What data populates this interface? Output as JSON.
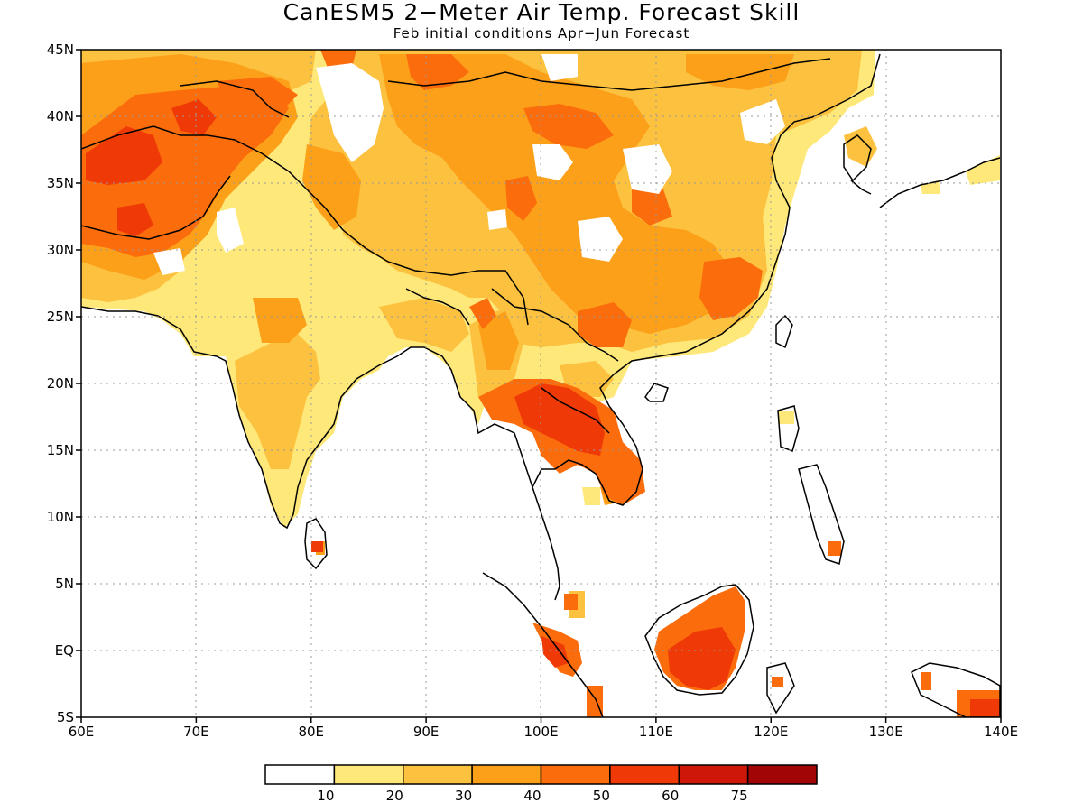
{
  "title": "CanESM5 2−Meter Air Temp. Forecast Skill",
  "subtitle": "Feb initial conditions  Apr−Jun Forecast",
  "map": {
    "lon_range": [
      60,
      140
    ],
    "lat_range": [
      -5,
      45
    ],
    "gridlines": "dotted",
    "x_ticks": [
      "60E",
      "70E",
      "80E",
      "90E",
      "100E",
      "110E",
      "120E",
      "130E",
      "140E"
    ],
    "y_ticks": [
      "5S",
      "EQ",
      "5N",
      "10N",
      "15N",
      "20N",
      "25N",
      "30N",
      "35N",
      "40N",
      "45N"
    ]
  },
  "colorbar": {
    "levels": [
      "10",
      "20",
      "30",
      "40",
      "50",
      "60",
      "75"
    ],
    "colors": [
      "#ffffff",
      "#ffe87a",
      "#fcc13e",
      "#fca01a",
      "#fb6d0c",
      "#ef3a07",
      "#cf1709",
      "#a10505"
    ]
  }
}
